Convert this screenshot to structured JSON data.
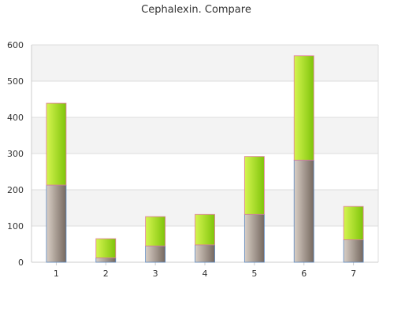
{
  "chart_data": {
    "type": "bar",
    "stacked": true,
    "title": "Cephalexin. Compare",
    "categories": [
      "1",
      "2",
      "3",
      "4",
      "5",
      "6",
      "7"
    ],
    "series": [
      {
        "values": [
          213,
          12,
          45,
          48,
          132,
          282,
          62
        ]
      },
      {
        "values": [
          226,
          53,
          81,
          84,
          160,
          288,
          92
        ]
      }
    ],
    "ylim": [
      0,
      600
    ],
    "yticks": [
      "0",
      "100",
      "200",
      "300",
      "400",
      "500",
      "600"
    ],
    "grid": true,
    "band_colors": [
      "#ffffff",
      "#f3f3f3"
    ],
    "colors": {
      "lower_light": "#d9cfc6",
      "lower_dark": "#75685f",
      "upper_light": "#d6f550",
      "upper_dark": "#7ec40a",
      "lower_edge": "#5b87c0",
      "upper_edge": "#e07a9a"
    }
  }
}
